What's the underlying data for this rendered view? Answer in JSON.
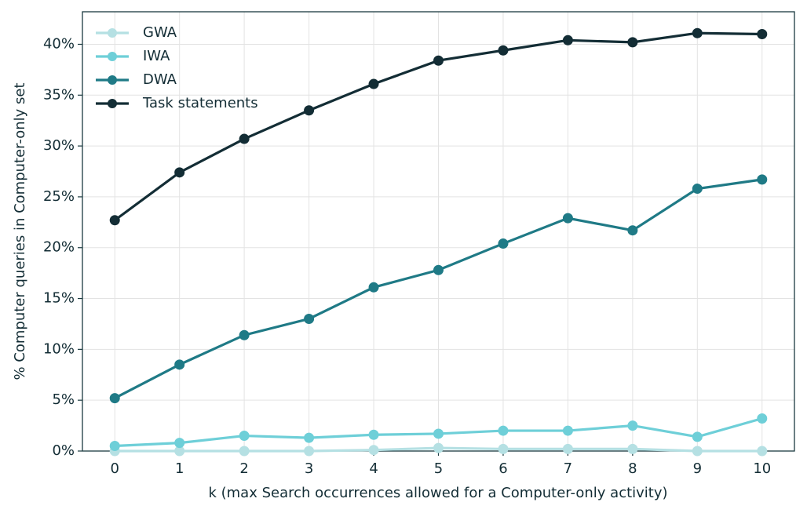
{
  "chart_data": {
    "type": "line",
    "x": [
      0,
      1,
      2,
      3,
      4,
      5,
      6,
      7,
      8,
      9,
      10
    ],
    "xlabel": "k (max Search occurrences allowed for a Computer-only activity)",
    "ylabel": "% Computer queries in Computer-only set",
    "xlim": [
      -0.5,
      10.5
    ],
    "xticks": [
      0,
      1,
      2,
      3,
      4,
      5,
      6,
      7,
      8,
      9,
      10
    ],
    "ylim": [
      0,
      43.2
    ],
    "yticks": [
      {
        "value": 0,
        "label": "0%"
      },
      {
        "value": 5,
        "label": "5%"
      },
      {
        "value": 10,
        "label": "10%"
      },
      {
        "value": 15,
        "label": "15%"
      },
      {
        "value": 20,
        "label": "20%"
      },
      {
        "value": 25,
        "label": "25%"
      },
      {
        "value": 30,
        "label": "30%"
      },
      {
        "value": 35,
        "label": "35%"
      },
      {
        "value": 40,
        "label": "40%"
      }
    ],
    "grid": true,
    "legend": "upper left",
    "series": [
      {
        "name": "GWA",
        "color": "#b5e0e3",
        "values": [
          0.0,
          0.0,
          0.0,
          0.0,
          0.1,
          0.3,
          0.2,
          0.2,
          0.2,
          0.0,
          0.0
        ]
      },
      {
        "name": "IWA",
        "color": "#6ecfd8",
        "values": [
          0.5,
          0.8,
          1.5,
          1.3,
          1.6,
          1.7,
          2.0,
          2.0,
          2.5,
          1.4,
          3.2
        ]
      },
      {
        "name": "DWA",
        "color": "#1f7a86",
        "values": [
          5.2,
          8.5,
          11.4,
          13.0,
          16.1,
          17.8,
          20.4,
          22.9,
          21.7,
          25.8,
          26.7
        ]
      },
      {
        "name": "Task statements",
        "color": "#132d35",
        "values": [
          22.7,
          27.4,
          30.7,
          33.5,
          36.1,
          38.4,
          39.4,
          40.4,
          40.2,
          41.1,
          41.0
        ]
      }
    ]
  }
}
